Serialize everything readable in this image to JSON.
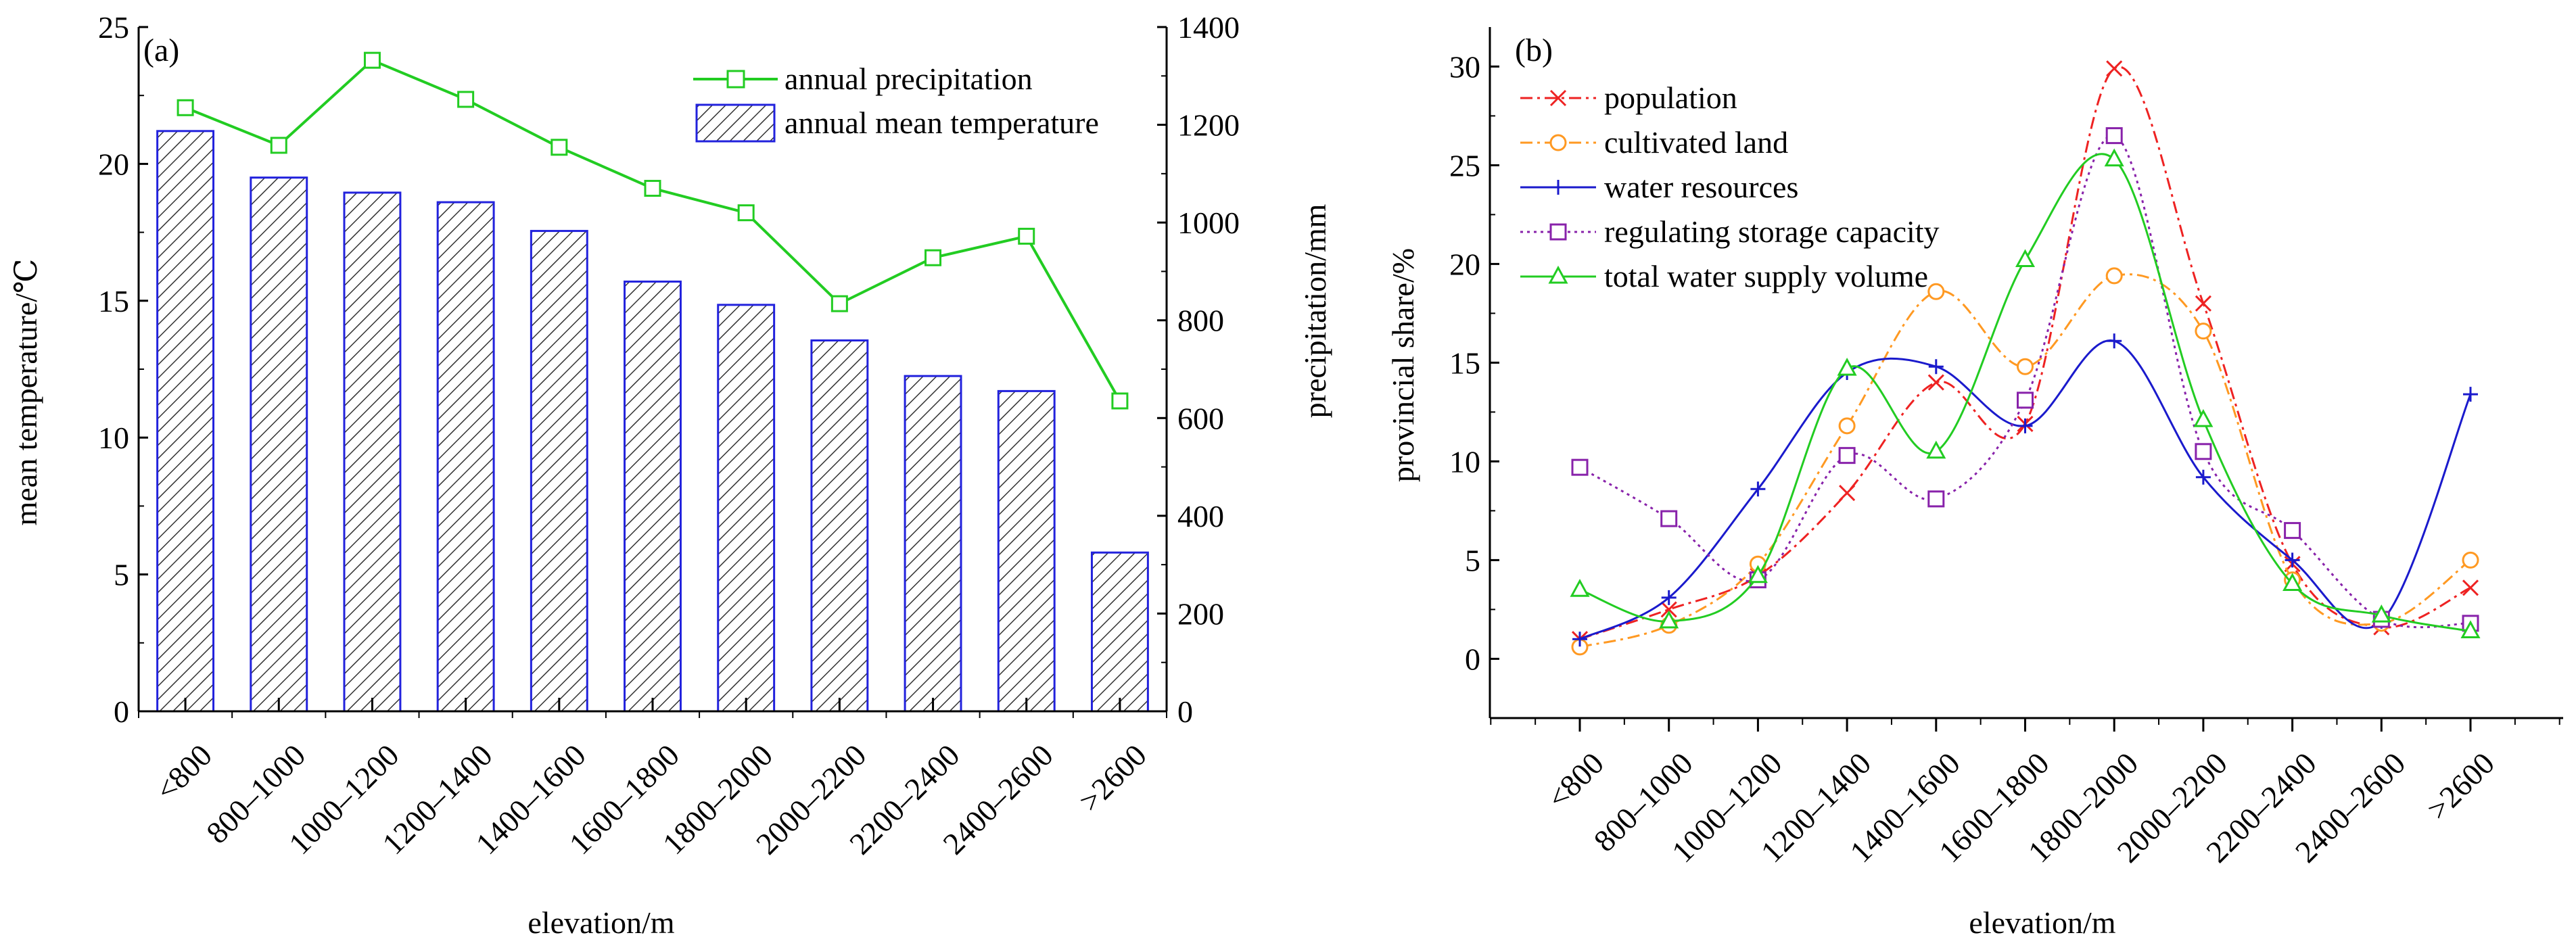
{
  "chart_data": [
    {
      "panel_label": "(a)",
      "type": "bar+line",
      "categories": [
        "<800",
        "800–1000",
        "1000–1200",
        "1200–1400",
        "1400–1600",
        "1600–1800",
        "1800–2000",
        "2000–2200",
        "2200–2400",
        "2400–2600",
        ">2600"
      ],
      "xlabel": "elevation/m",
      "ylabel_left": "mean temperature/℃",
      "ylabel_right": "precipitation/mm",
      "ylim_left": [
        0,
        25
      ],
      "ylim_right": [
        0,
        1400
      ],
      "yticks_left": [
        0,
        5,
        10,
        15,
        20,
        25
      ],
      "yticks_right": [
        0,
        200,
        400,
        600,
        800,
        1000,
        1200,
        1400
      ],
      "series": [
        {
          "name": "annual precipitation",
          "kind": "line",
          "axis": "right",
          "color": "#22cc22",
          "values": [
            1235,
            1158,
            1332,
            1252,
            1154,
            1070,
            1020,
            834,
            928,
            972,
            635
          ]
        },
        {
          "name": "annual mean temperature",
          "kind": "bar",
          "axis": "left",
          "color": "#2222dd",
          "values": [
            21.2,
            19.5,
            18.95,
            18.6,
            17.55,
            15.7,
            14.85,
            13.55,
            12.25,
            11.7,
            5.8
          ]
        }
      ],
      "legend_position": "top-right"
    },
    {
      "panel_label": "(b)",
      "type": "line",
      "categories": [
        "<800",
        "800–1000",
        "1000–1200",
        "1200–1400",
        "1400–1600",
        "1600–1800",
        "1800–2000",
        "2000–2200",
        "2200–2400",
        "2400–2600",
        ">2600"
      ],
      "xlabel": "elevation/m",
      "ylabel": "provincial share/%",
      "ylim": [
        -3,
        32
      ],
      "yticks": [
        0,
        5,
        10,
        15,
        20,
        25,
        30
      ],
      "series": [
        {
          "name": "population",
          "color": "#ee2222",
          "marker": "x",
          "dash": "dashdot",
          "values": [
            1.0,
            2.5,
            4.2,
            8.4,
            14.0,
            11.9,
            29.9,
            18.0,
            4.8,
            1.6,
            3.6
          ]
        },
        {
          "name": "cultivated land",
          "color": "#ff9922",
          "marker": "circle",
          "dash": "dashdot",
          "values": [
            0.6,
            1.7,
            4.8,
            11.8,
            18.6,
            14.8,
            19.4,
            16.6,
            4.0,
            1.8,
            5.0
          ]
        },
        {
          "name": "water resources",
          "color": "#1a1acc",
          "marker": "plus",
          "dash": "solid",
          "values": [
            1.0,
            3.1,
            8.6,
            14.5,
            14.8,
            11.8,
            16.1,
            9.2,
            5.0,
            1.9,
            13.4
          ]
        },
        {
          "name": "regulating storage capacity",
          "color": "#8822aa",
          "marker": "square",
          "dash": "dotted",
          "values": [
            9.7,
            7.1,
            4.0,
            10.3,
            8.1,
            13.1,
            26.5,
            10.5,
            6.5,
            2.0,
            1.8
          ]
        },
        {
          "name": "total water supply volume",
          "color": "#22cc22",
          "marker": "triangle",
          "dash": "solid",
          "values": [
            3.5,
            1.9,
            4.2,
            14.7,
            10.5,
            20.2,
            25.3,
            12.1,
            3.8,
            2.2,
            1.4
          ]
        }
      ],
      "legend_position": "top-left"
    }
  ]
}
